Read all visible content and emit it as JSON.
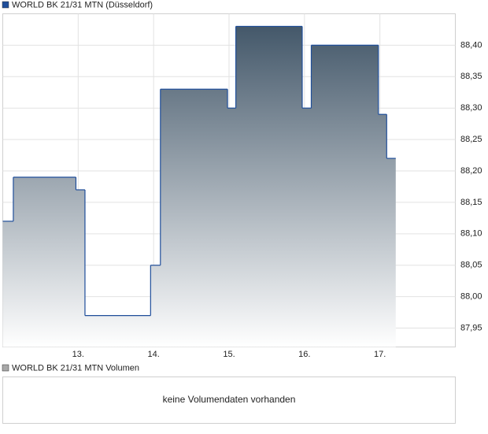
{
  "chart_data": {
    "type": "step-area",
    "series": [
      {
        "name": "WORLD BK 21/31 MTN (Düsseldorf)",
        "color": "#1f4e9a",
        "values": [
          88.12,
          88.19,
          88.17,
          87.97,
          88.05,
          88.33,
          88.3,
          88.43,
          88.3,
          88.4,
          88.29,
          88.22,
          88.22
        ]
      }
    ],
    "x": [
      12.0,
      12.14,
      12.97,
      13.09,
      13.96,
      14.09,
      14.98,
      15.09,
      15.97,
      16.09,
      16.98,
      17.09,
      17.21
    ],
    "xlim": [
      12,
      18
    ],
    "xticks": [
      {
        "value": 13,
        "label": "13."
      },
      {
        "value": 14,
        "label": "14."
      },
      {
        "value": 15,
        "label": "15."
      },
      {
        "value": 16,
        "label": "16."
      },
      {
        "value": 17,
        "label": "17."
      }
    ],
    "ylim": [
      87.92,
      88.45
    ],
    "yticks": [
      {
        "value": 87.95,
        "label": "87,95"
      },
      {
        "value": 88.0,
        "label": "88,00"
      },
      {
        "value": 88.05,
        "label": "88,05"
      },
      {
        "value": 88.1,
        "label": "88,10"
      },
      {
        "value": 88.15,
        "label": "88,15"
      },
      {
        "value": 88.2,
        "label": "88,20"
      },
      {
        "value": 88.25,
        "label": "88,25"
      },
      {
        "value": 88.3,
        "label": "88,30"
      },
      {
        "value": 88.35,
        "label": "88,35"
      },
      {
        "value": 88.4,
        "label": "88,40"
      }
    ],
    "grid": true,
    "fill_top_color": "#44586a"
  },
  "volume_panel": {
    "legend": "WORLD BK 21/31 MTN Volumen",
    "legend_color": "#a8a8a8",
    "message": "keine Volumendaten vorhanden"
  }
}
